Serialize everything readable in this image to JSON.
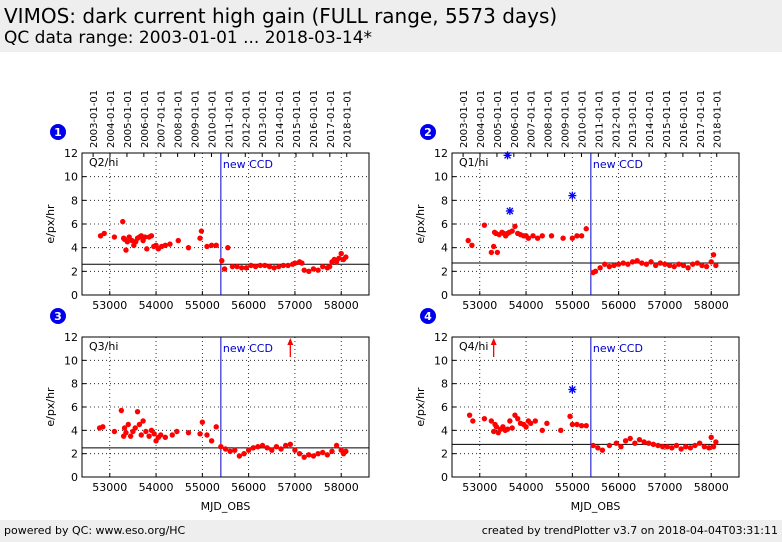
{
  "header": {
    "title": "VIMOS: dark current high gain (FULL range, 5573 days)",
    "subtitle": "QC data range: 2003-01-01 ... 2018-03-14*"
  },
  "footer": {
    "left": "powered by QC: www.eso.org/HC",
    "right": "created by trendPlotter v3.7 on 2018-04-04T03:31:11"
  },
  "colors": {
    "data": "#ff0000",
    "outlier": "#0000ff",
    "reference": "#000000",
    "ccd_line": "#0000cc",
    "header_bg": "#eeeeee"
  },
  "chart_data": [
    {
      "type": "scatter",
      "panel_number": "1",
      "panel_label": "Q2/hi",
      "annotation": "new CCD",
      "annotation_x": 55400,
      "xlabel": "",
      "ylabel": "e/px/hr",
      "xlim": [
        52400,
        58600
      ],
      "ylim": [
        0,
        12
      ],
      "xticks": [
        53000,
        54000,
        55000,
        56000,
        57000,
        58000
      ],
      "yticks": [
        0,
        2,
        4,
        6,
        8,
        10,
        12
      ],
      "top_axis_dates": [
        "2003-01-01",
        "2004-01-01",
        "2005-01-01",
        "2006-01-01",
        "2007-01-01",
        "2008-01-01",
        "2009-01-01",
        "2010-01-01",
        "2011-01-01",
        "2012-01-01",
        "2013-01-01",
        "2014-01-01",
        "2015-01-01",
        "2016-01-01",
        "2017-01-01",
        "2018-01-01"
      ],
      "top_axis_mjd": [
        52640,
        53005,
        53371,
        53736,
        54101,
        54466,
        54832,
        55197,
        55562,
        55927,
        56293,
        56658,
        57023,
        57388,
        57754,
        58119
      ],
      "reference_line": 2.6,
      "series": [
        {
          "x": [
            52800,
            52880,
            53100,
            53280,
            53300,
            53320,
            53350,
            53380,
            53420,
            53480,
            53520,
            53560,
            53600,
            53640,
            53680,
            53720,
            53760,
            53800,
            53850,
            53900,
            53950,
            54000,
            54050,
            54120,
            54200,
            54300,
            54480,
            54700,
            54950,
            54980,
            55100,
            55200,
            55300,
            55420,
            55480,
            55550,
            55650,
            55750,
            55850,
            55950,
            56050,
            56150,
            56250,
            56350,
            56450,
            56550,
            56650,
            56750,
            56850,
            56950,
            57000,
            57100,
            57150,
            57200,
            57300,
            57400,
            57500,
            57600,
            57700,
            57750,
            57800,
            57850,
            57900,
            57950,
            58000,
            58050,
            58100
          ],
          "y": [
            5.0,
            5.2,
            4.9,
            6.2,
            4.8,
            4.7,
            3.8,
            4.5,
            4.9,
            4.6,
            4.2,
            4.5,
            4.8,
            4.9,
            5.0,
            4.6,
            4.9,
            3.9,
            4.9,
            5.0,
            4.1,
            4.2,
            3.9,
            4.1,
            4.2,
            4.3,
            4.6,
            4.0,
            4.8,
            5.4,
            4.1,
            4.2,
            4.2,
            2.9,
            2.2,
            4.0,
            2.4,
            2.4,
            2.3,
            2.3,
            2.5,
            2.4,
            2.5,
            2.5,
            2.4,
            2.3,
            2.4,
            2.5,
            2.5,
            2.6,
            2.7,
            2.8,
            2.7,
            2.1,
            2.0,
            2.2,
            2.1,
            2.4,
            2.3,
            2.4,
            2.8,
            3.0,
            2.8,
            3.1,
            3.5,
            3.0,
            3.2
          ]
        }
      ]
    },
    {
      "type": "scatter",
      "panel_number": "2",
      "panel_label": "Q1/hi",
      "annotation": "new CCD",
      "annotation_x": 55400,
      "xlabel": "",
      "ylabel": "e/px/hr",
      "xlim": [
        52400,
        58600
      ],
      "ylim": [
        0,
        12
      ],
      "xticks": [
        53000,
        54000,
        55000,
        56000,
        57000,
        58000
      ],
      "yticks": [
        0,
        2,
        4,
        6,
        8,
        10,
        12
      ],
      "top_axis_dates": [
        "2003-01-01",
        "2004-01-01",
        "2005-01-01",
        "2006-01-01",
        "2007-01-01",
        "2008-01-01",
        "2009-01-01",
        "2010-01-01",
        "2011-01-01",
        "2012-01-01",
        "2013-01-01",
        "2014-01-01",
        "2015-01-01",
        "2016-01-01",
        "2017-01-01",
        "2018-01-01"
      ],
      "top_axis_mjd": [
        52640,
        53005,
        53371,
        53736,
        54101,
        54466,
        54832,
        55197,
        55562,
        55927,
        56293,
        56658,
        57023,
        57388,
        57754,
        58119
      ],
      "reference_line": 2.7,
      "series": [
        {
          "x": [
            52750,
            52830,
            53100,
            53250,
            53300,
            53320,
            53350,
            53380,
            53420,
            53480,
            53520,
            53560,
            53600,
            53640,
            53700,
            53760,
            53820,
            53880,
            53950,
            54000,
            54050,
            54150,
            54250,
            54350,
            54550,
            54800,
            55000,
            55100,
            55200,
            55300,
            55450,
            55500,
            55600,
            55700,
            55800,
            55900,
            56000,
            56100,
            56200,
            56300,
            56400,
            56500,
            56600,
            56700,
            56800,
            56900,
            57000,
            57100,
            57200,
            57300,
            57400,
            57500,
            57600,
            57700,
            57800,
            57900,
            58000,
            58050,
            58100
          ],
          "y": [
            4.6,
            4.2,
            5.9,
            3.6,
            4.1,
            5.3,
            5.2,
            3.6,
            5.1,
            5.3,
            5.2,
            5.0,
            5.2,
            5.3,
            5.4,
            5.8,
            5.2,
            5.1,
            5.0,
            5.0,
            4.8,
            5.0,
            4.8,
            5.0,
            5.0,
            4.8,
            4.8,
            5.0,
            5.0,
            5.6,
            1.9,
            2.0,
            2.3,
            2.6,
            2.4,
            2.5,
            2.6,
            2.7,
            2.6,
            2.8,
            2.9,
            2.7,
            2.6,
            2.8,
            2.5,
            2.7,
            2.6,
            2.5,
            2.4,
            2.6,
            2.5,
            2.3,
            2.6,
            2.7,
            2.5,
            2.4,
            2.8,
            3.4,
            2.5
          ]
        },
        {
          "name": "outlier",
          "x": [
            53600,
            53650,
            55000
          ],
          "y": [
            11.8,
            7.1,
            8.4
          ]
        }
      ]
    },
    {
      "type": "scatter",
      "panel_number": "3",
      "panel_label": "Q3/hi",
      "annotation": "new CCD",
      "annotation_x": 55400,
      "xlabel": "MJD_OBS",
      "ylabel": "e/px/hr",
      "xlim": [
        52400,
        58600
      ],
      "ylim": [
        0,
        12
      ],
      "xticks": [
        53000,
        54000,
        55000,
        56000,
        57000,
        58000
      ],
      "yticks": [
        0,
        2,
        4,
        6,
        8,
        10,
        12
      ],
      "reference_line": 2.5,
      "offscale_marker_x": 56900,
      "series": [
        {
          "x": [
            52780,
            52850,
            53100,
            53250,
            53300,
            53320,
            53350,
            53400,
            53450,
            53500,
            53550,
            53600,
            53640,
            53680,
            53720,
            53780,
            53850,
            53900,
            53960,
            54000,
            54050,
            54100,
            54200,
            54350,
            54450,
            54700,
            54950,
            55000,
            55100,
            55200,
            55300,
            55400,
            55500,
            55600,
            55700,
            55800,
            55900,
            56000,
            56100,
            56200,
            56300,
            56400,
            56500,
            56600,
            56700,
            56800,
            56900,
            57000,
            57100,
            57200,
            57300,
            57400,
            57500,
            57600,
            57700,
            57800,
            57900,
            58000,
            58050,
            58100
          ],
          "y": [
            4.2,
            4.3,
            3.9,
            5.7,
            3.5,
            4.2,
            3.8,
            4.5,
            3.5,
            3.9,
            4.2,
            5.6,
            4.5,
            3.6,
            4.8,
            3.9,
            3.5,
            4.0,
            3.7,
            3.1,
            3.4,
            3.6,
            3.4,
            3.6,
            3.9,
            3.8,
            3.7,
            4.7,
            3.6,
            3.1,
            4.3,
            2.6,
            2.4,
            2.2,
            2.3,
            1.8,
            2.0,
            2.3,
            2.5,
            2.6,
            2.7,
            2.5,
            2.3,
            2.6,
            2.4,
            2.7,
            2.8,
            2.3,
            2.0,
            1.7,
            1.9,
            1.8,
            2.0,
            2.1,
            1.9,
            2.2,
            2.7,
            2.3,
            2.0,
            2.2
          ]
        }
      ]
    },
    {
      "type": "scatter",
      "panel_number": "4",
      "panel_label": "Q4/hi",
      "annotation": "new CCD",
      "annotation_x": 55400,
      "xlabel": "MJD_OBS",
      "ylabel": "e/px/hr",
      "xlim": [
        52400,
        58600
      ],
      "ylim": [
        0,
        12
      ],
      "xticks": [
        53000,
        54000,
        55000,
        56000,
        57000,
        58000
      ],
      "yticks": [
        0,
        2,
        4,
        6,
        8,
        10,
        12
      ],
      "reference_line": 2.8,
      "offscale_marker_x": 53300,
      "series": [
        {
          "x": [
            52780,
            52850,
            53100,
            53250,
            53300,
            53330,
            53360,
            53400,
            53450,
            53500,
            53550,
            53600,
            53650,
            53700,
            53760,
            53820,
            53880,
            53950,
            54000,
            54050,
            54100,
            54200,
            54350,
            54450,
            54750,
            54950,
            55000,
            55100,
            55200,
            55300,
            55450,
            55550,
            55650,
            55800,
            55950,
            56050,
            56150,
            56250,
            56350,
            56450,
            56550,
            56650,
            56750,
            56850,
            56950,
            57050,
            57150,
            57250,
            57350,
            57450,
            57550,
            57650,
            57750,
            57850,
            57950,
            58000,
            58050,
            58100
          ],
          "y": [
            5.3,
            4.8,
            5.0,
            4.8,
            3.9,
            4.5,
            4.3,
            3.8,
            4.1,
            4.3,
            4.0,
            4.1,
            4.8,
            4.2,
            5.3,
            5.0,
            4.6,
            4.5,
            4.3,
            4.8,
            4.6,
            4.8,
            4.0,
            4.6,
            4.0,
            5.2,
            4.5,
            4.5,
            4.4,
            4.4,
            2.7,
            2.5,
            2.3,
            2.7,
            2.9,
            2.6,
            3.1,
            3.3,
            2.9,
            3.2,
            3.0,
            2.9,
            2.8,
            2.7,
            2.6,
            2.6,
            2.5,
            2.7,
            2.4,
            2.6,
            2.5,
            2.7,
            2.9,
            2.6,
            2.5,
            3.4,
            2.6,
            3.0
          ]
        },
        {
          "name": "outlier",
          "x": [
            55000
          ],
          "y": [
            7.5
          ]
        }
      ]
    }
  ]
}
